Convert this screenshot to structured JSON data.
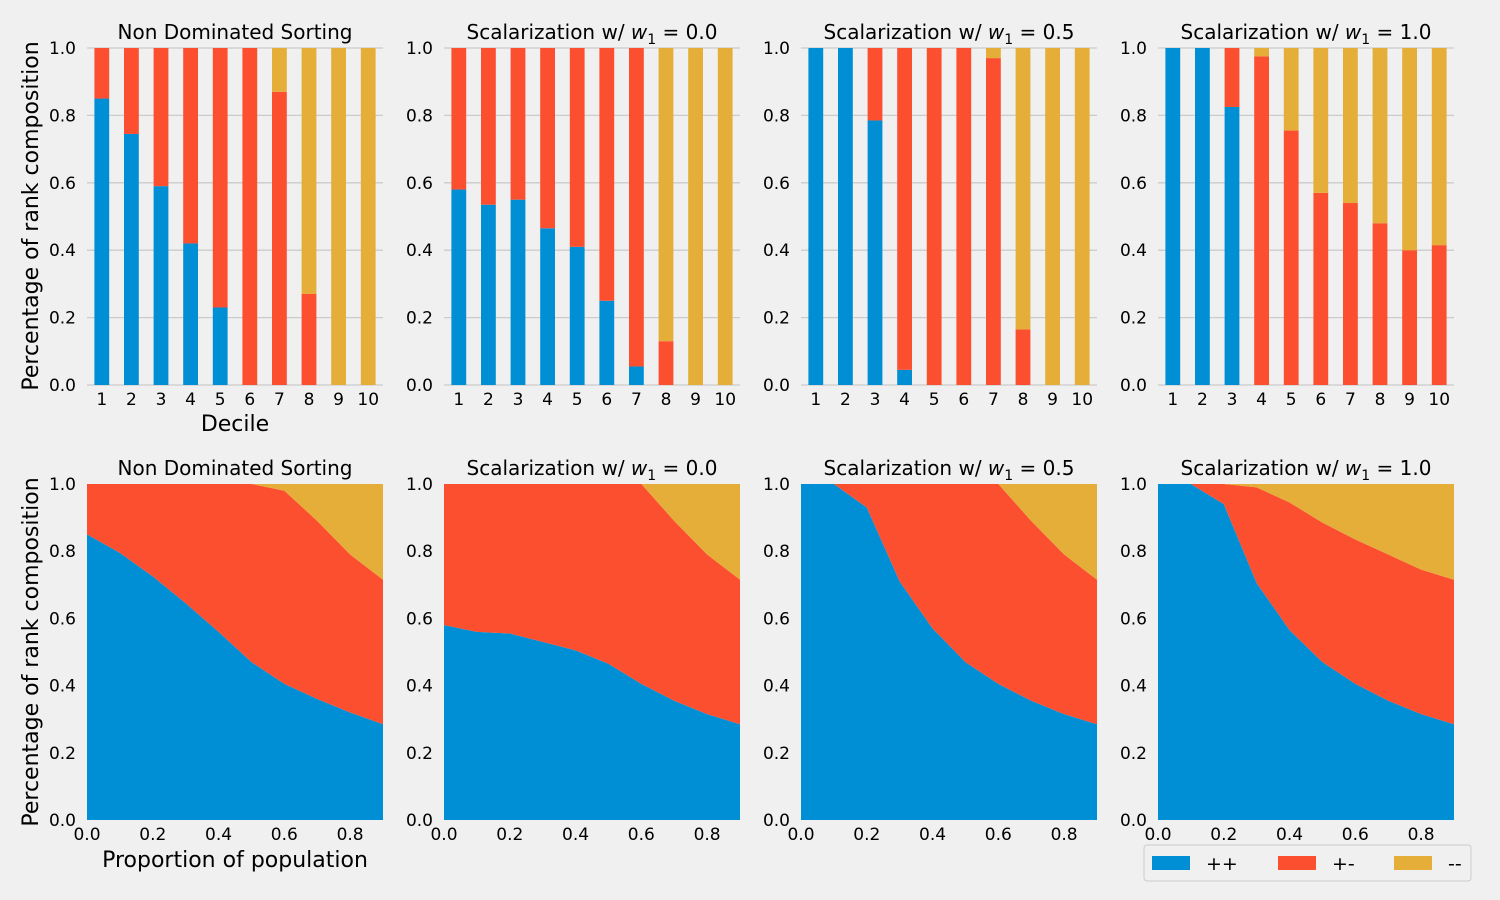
{
  "colors": {
    "background": "#f0f0f0",
    "grid": "#cbcbcb",
    "pp": "#008fd5",
    "pm": "#fc4f30",
    "mm": "#e5ae38"
  },
  "legend": {
    "placement": "lower-right",
    "entries": [
      "++",
      "+-",
      "--"
    ]
  },
  "shared": {
    "row1_ylabel": "Percentage of rank composition",
    "row1_xlabel": "Decile",
    "row2_ylabel": "Percentage of rank composition",
    "row2_xlabel": "Proportion of population"
  },
  "chart_data": [
    {
      "type": "bar",
      "stacked": true,
      "title": "Non Dominated Sorting",
      "title_sub": "",
      "title_rhs": "",
      "categories": [
        "1",
        "2",
        "3",
        "4",
        "5",
        "6",
        "7",
        "8",
        "9",
        "10"
      ],
      "ylim": [
        0,
        1.0
      ],
      "grid": true,
      "yticks": [
        "0.0",
        "0.2",
        "0.4",
        "0.6",
        "0.8",
        "1.0"
      ],
      "series": [
        {
          "name": "++",
          "values": [
            0.85,
            0.745,
            0.59,
            0.42,
            0.23,
            0,
            0,
            0,
            0,
            0
          ]
        },
        {
          "name": "+-",
          "values": [
            0.15,
            0.255,
            0.41,
            0.58,
            0.77,
            1.0,
            0.87,
            0.27,
            0,
            0
          ]
        },
        {
          "name": "--",
          "values": [
            0,
            0,
            0,
            0,
            0,
            0,
            0.13,
            0.73,
            1.0,
            1.0
          ]
        }
      ]
    },
    {
      "type": "bar",
      "stacked": true,
      "title": "Scalarization w/ ",
      "title_sub": "1",
      "title_rhs": " = 0.0",
      "categories": [
        "1",
        "2",
        "3",
        "4",
        "5",
        "6",
        "7",
        "8",
        "9",
        "10"
      ],
      "ylim": [
        0,
        1.0
      ],
      "grid": true,
      "yticks": [
        "0.0",
        "0.2",
        "0.4",
        "0.6",
        "0.8",
        "1.0"
      ],
      "series": [
        {
          "name": "++",
          "values": [
            0.58,
            0.535,
            0.55,
            0.465,
            0.41,
            0.25,
            0.055,
            0,
            0,
            0
          ]
        },
        {
          "name": "+-",
          "values": [
            0.42,
            0.465,
            0.45,
            0.535,
            0.59,
            0.75,
            0.945,
            0.13,
            0,
            0
          ]
        },
        {
          "name": "--",
          "values": [
            0,
            0,
            0,
            0,
            0,
            0,
            0,
            0.87,
            1.0,
            1.0
          ]
        }
      ]
    },
    {
      "type": "bar",
      "stacked": true,
      "title": "Scalarization w/ ",
      "title_sub": "1",
      "title_rhs": " = 0.5",
      "categories": [
        "1",
        "2",
        "3",
        "4",
        "5",
        "6",
        "7",
        "8",
        "9",
        "10"
      ],
      "ylim": [
        0,
        1.0
      ],
      "grid": true,
      "yticks": [
        "0.0",
        "0.2",
        "0.4",
        "0.6",
        "0.8",
        "1.0"
      ],
      "series": [
        {
          "name": "++",
          "values": [
            1.0,
            1.0,
            0.785,
            0.045,
            0,
            0,
            0,
            0,
            0,
            0
          ]
        },
        {
          "name": "+-",
          "values": [
            0,
            0,
            0.215,
            0.955,
            1.0,
            1.0,
            0.97,
            0.165,
            0,
            0
          ]
        },
        {
          "name": "--",
          "values": [
            0,
            0,
            0,
            0,
            0,
            0,
            0.03,
            0.835,
            1.0,
            1.0
          ]
        }
      ]
    },
    {
      "type": "bar",
      "stacked": true,
      "title": "Scalarization w/ ",
      "title_sub": "1",
      "title_rhs": " = 1.0",
      "categories": [
        "1",
        "2",
        "3",
        "4",
        "5",
        "6",
        "7",
        "8",
        "9",
        "10"
      ],
      "ylim": [
        0,
        1.0
      ],
      "grid": true,
      "yticks": [
        "0.0",
        "0.2",
        "0.4",
        "0.6",
        "0.8",
        "1.0"
      ],
      "series": [
        {
          "name": "++",
          "values": [
            1.0,
            1.0,
            0.825,
            0,
            0,
            0,
            0,
            0,
            0,
            0
          ]
        },
        {
          "name": "+-",
          "values": [
            0,
            0,
            0.175,
            0.975,
            0.755,
            0.57,
            0.54,
            0.48,
            0.4,
            0.415
          ]
        },
        {
          "name": "--",
          "values": [
            0,
            0,
            0,
            0.025,
            0.245,
            0.43,
            0.46,
            0.52,
            0.6,
            0.585
          ]
        }
      ]
    },
    {
      "type": "area",
      "stacked": true,
      "title": "Non Dominated Sorting",
      "title_sub": "",
      "title_rhs": "",
      "x": [
        0,
        0.1,
        0.2,
        0.3,
        0.4,
        0.5,
        0.6,
        0.7,
        0.8,
        0.9
      ],
      "xlim": [
        0,
        0.9
      ],
      "ylim": [
        0,
        1.0
      ],
      "grid": false,
      "xticks": [
        "0.0",
        "0.2",
        "0.4",
        "0.6",
        "0.8"
      ],
      "yticks": [
        "0.0",
        "0.2",
        "0.4",
        "0.6",
        "0.8",
        "1.0"
      ],
      "series": [
        {
          "name": "++",
          "values": [
            0.85,
            0.795,
            0.725,
            0.645,
            0.56,
            0.47,
            0.405,
            0.36,
            0.32,
            0.285
          ]
        },
        {
          "name": "+-",
          "values": [
            0.15,
            0.205,
            0.275,
            0.355,
            0.44,
            0.53,
            0.575,
            0.53,
            0.47,
            0.43
          ]
        },
        {
          "name": "--",
          "values": [
            0,
            0,
            0,
            0,
            0,
            0,
            0.02,
            0.11,
            0.21,
            0.285
          ]
        }
      ]
    },
    {
      "type": "area",
      "stacked": true,
      "title": "Scalarization w/ ",
      "title_sub": "1",
      "title_rhs": " = 0.0",
      "x": [
        0,
        0.1,
        0.2,
        0.3,
        0.4,
        0.5,
        0.6,
        0.7,
        0.8,
        0.9
      ],
      "xlim": [
        0,
        0.9
      ],
      "ylim": [
        0,
        1.0
      ],
      "grid": false,
      "xticks": [
        "0.0",
        "0.2",
        "0.4",
        "0.6",
        "0.8"
      ],
      "yticks": [
        "0.0",
        "0.2",
        "0.4",
        "0.6",
        "0.8",
        "1.0"
      ],
      "series": [
        {
          "name": "++",
          "values": [
            0.58,
            0.56,
            0.555,
            0.53,
            0.505,
            0.465,
            0.405,
            0.355,
            0.315,
            0.285
          ]
        },
        {
          "name": "+-",
          "values": [
            0.42,
            0.44,
            0.445,
            0.47,
            0.495,
            0.535,
            0.595,
            0.535,
            0.475,
            0.43
          ]
        },
        {
          "name": "--",
          "values": [
            0,
            0,
            0,
            0,
            0,
            0,
            0,
            0.11,
            0.21,
            0.285
          ]
        }
      ]
    },
    {
      "type": "area",
      "stacked": true,
      "title": "Scalarization w/ ",
      "title_sub": "1",
      "title_rhs": " = 0.5",
      "x": [
        0,
        0.1,
        0.2,
        0.3,
        0.4,
        0.5,
        0.6,
        0.7,
        0.8,
        0.9
      ],
      "xlim": [
        0,
        0.9
      ],
      "ylim": [
        0,
        1.0
      ],
      "grid": false,
      "xticks": [
        "0.0",
        "0.2",
        "0.4",
        "0.6",
        "0.8"
      ],
      "yticks": [
        "0.0",
        "0.2",
        "0.4",
        "0.6",
        "0.8",
        "1.0"
      ],
      "series": [
        {
          "name": "++",
          "values": [
            1.0,
            1.0,
            0.93,
            0.71,
            0.57,
            0.47,
            0.405,
            0.355,
            0.315,
            0.285
          ]
        },
        {
          "name": "+-",
          "values": [
            0,
            0,
            0.07,
            0.29,
            0.43,
            0.53,
            0.595,
            0.535,
            0.475,
            0.43
          ]
        },
        {
          "name": "--",
          "values": [
            0,
            0,
            0,
            0,
            0,
            0,
            0,
            0.11,
            0.21,
            0.285
          ]
        }
      ]
    },
    {
      "type": "area",
      "stacked": true,
      "title": "Scalarization w/ ",
      "title_sub": "1",
      "title_rhs": " = 1.0",
      "x": [
        0,
        0.1,
        0.2,
        0.3,
        0.4,
        0.5,
        0.6,
        0.7,
        0.8,
        0.9
      ],
      "xlim": [
        0,
        0.9
      ],
      "ylim": [
        0,
        1.0
      ],
      "grid": false,
      "xticks": [
        "0.0",
        "0.2",
        "0.4",
        "0.6",
        "0.8"
      ],
      "yticks": [
        "0.0",
        "0.2",
        "0.4",
        "0.6",
        "0.8",
        "1.0"
      ],
      "series": [
        {
          "name": "++",
          "values": [
            1.0,
            1.0,
            0.94,
            0.705,
            0.565,
            0.47,
            0.405,
            0.355,
            0.315,
            0.285
          ]
        },
        {
          "name": "+-",
          "values": [
            0,
            0,
            0.06,
            0.285,
            0.38,
            0.415,
            0.43,
            0.435,
            0.43,
            0.43
          ]
        },
        {
          "name": "--",
          "values": [
            0,
            0,
            0,
            0.01,
            0.055,
            0.115,
            0.165,
            0.21,
            0.255,
            0.285
          ]
        }
      ]
    }
  ]
}
